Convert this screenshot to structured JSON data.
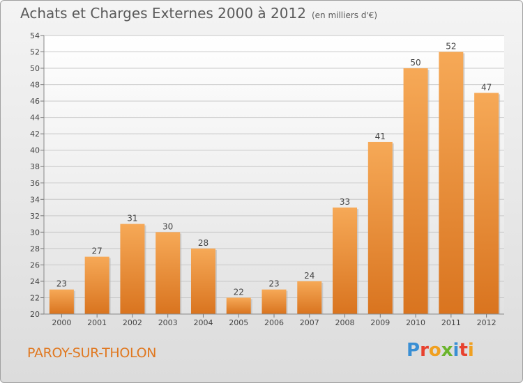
{
  "chart_data": {
    "type": "bar",
    "title": "Achats et Charges Externes 2000 à 2012",
    "unit": "(en milliers d'€)",
    "categories": [
      "2000",
      "2001",
      "2002",
      "2003",
      "2004",
      "2005",
      "2006",
      "2007",
      "2008",
      "2009",
      "2010",
      "2011",
      "2012"
    ],
    "values": [
      23,
      27,
      31,
      30,
      28,
      22,
      23,
      24,
      33,
      41,
      50,
      52,
      47
    ],
    "ylim": [
      20,
      54
    ],
    "yticks": [
      20,
      22,
      24,
      26,
      28,
      30,
      32,
      34,
      36,
      38,
      40,
      42,
      44,
      46,
      48,
      50,
      52,
      54
    ],
    "grid": true,
    "bar_color_top": "#f6a957",
    "bar_color_bottom": "#d9741f"
  },
  "footer": {
    "commune": "PAROY-SUR-THOLON",
    "logo": [
      {
        "char": "P",
        "color": "#3a8fd4"
      },
      {
        "char": "r",
        "color": "#e8412e"
      },
      {
        "char": "o",
        "color": "#f0a020"
      },
      {
        "char": "x",
        "color": "#6ab42c"
      },
      {
        "char": "i",
        "color": "#3a8fd4"
      },
      {
        "char": "t",
        "color": "#e8412e"
      },
      {
        "char": "i",
        "color": "#f0a020"
      }
    ]
  }
}
